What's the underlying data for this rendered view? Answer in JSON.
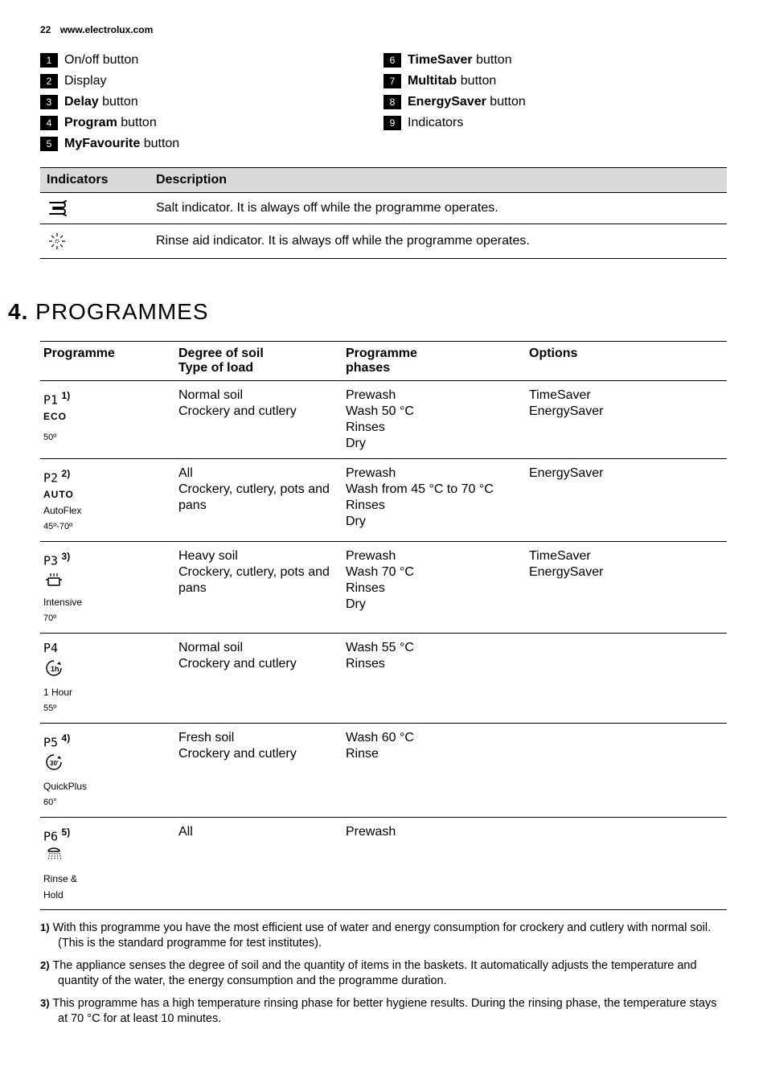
{
  "header": {
    "page_num": "22",
    "url": "www.electrolux.com"
  },
  "legend": {
    "left": [
      {
        "num": "1",
        "text_before": "On/off button",
        "bold": ""
      },
      {
        "num": "2",
        "text_before": "Display",
        "bold": ""
      },
      {
        "num": "3",
        "bold": "Delay",
        "text_after": " button"
      },
      {
        "num": "4",
        "bold": "Program",
        "text_after": " button"
      },
      {
        "num": "5",
        "bold": "MyFavourite",
        "text_after": " button"
      }
    ],
    "right": [
      {
        "num": "6",
        "bold": "TimeSaver",
        "text_after": " button"
      },
      {
        "num": "7",
        "bold": "Multitab",
        "text_after": " button"
      },
      {
        "num": "8",
        "bold": "EnergySaver",
        "text_after": " button"
      },
      {
        "num": "9",
        "text_before": "Indicators",
        "bold": ""
      }
    ]
  },
  "indicator_table": {
    "headers": {
      "c1": "Indicators",
      "c2": "Description"
    },
    "rows": [
      {
        "desc": "Salt indicator. It is always off while the programme operates."
      },
      {
        "desc": "Rinse aid indicator. It is always off while the programme operates."
      }
    ]
  },
  "section4": {
    "num": "4.",
    "title": "PROGRAMMES"
  },
  "prog_table": {
    "headers": {
      "c1": "Programme",
      "c2a": "Degree of soil",
      "c2b": "Type of load",
      "c3a": "Programme",
      "c3b": "phases",
      "c4": "Options"
    },
    "rows": [
      {
        "pcode": "P1",
        "sup": "1)",
        "label_bold": "ECO",
        "label": "",
        "temp": "50º",
        "soil": "Normal soil\nCrockery and cutlery",
        "phases": "Prewash\nWash 50 °C\nRinses\nDry",
        "options": "TimeSaver\nEnergySaver"
      },
      {
        "pcode": "P2",
        "sup": "2)",
        "label_bold": "AUTO",
        "label": "AutoFlex",
        "temp": "45º-70º",
        "soil": "All\nCrockery, cutlery, pots and pans",
        "phases": "Prewash\nWash from 45 °C to 70 °C\nRinses\nDry",
        "options": "EnergySaver"
      },
      {
        "pcode": "P3",
        "sup": "3)",
        "label_bold": "",
        "label": "Intensive",
        "temp": "70º",
        "soil": "Heavy soil\nCrockery, cutlery, pots and pans",
        "phases": "Prewash\nWash 70 °C\nRinses\nDry",
        "options": "TimeSaver\nEnergySaver"
      },
      {
        "pcode": "P4",
        "sup": "",
        "label_bold": "",
        "label": "1 Hour",
        "temp": "55º",
        "soil": "Normal soil\nCrockery and cutlery",
        "phases": "Wash 55 °C\nRinses",
        "options": ""
      },
      {
        "pcode": "P5",
        "sup": "4)",
        "label_bold": "",
        "label": "QuickPlus",
        "temp": "60°",
        "soil": "Fresh soil\nCrockery and cutlery",
        "phases": "Wash 60 °C\nRinse",
        "options": ""
      },
      {
        "pcode": "P6",
        "sup": "5)",
        "label_bold": "",
        "label": "Rinse &\nHold",
        "temp": "",
        "soil": "All",
        "phases": "Prewash",
        "options": ""
      }
    ]
  },
  "footnotes": [
    {
      "num": "1)",
      "text": "With this programme you have the most efficient use of water and energy consumption for crockery and cutlery with normal soil. (This is the standard programme for test institutes)."
    },
    {
      "num": "2)",
      "text": "The appliance senses the degree of soil and the quantity of items in the baskets. It automatically adjusts the temperature and quantity of the water, the energy consumption and the programme duration."
    },
    {
      "num": "3)",
      "text": "This programme has a high temperature rinsing phase for better hygiene results. During the rinsing phase, the temperature stays at 70 °C for at least 10 minutes."
    }
  ],
  "icons": {
    "p3": "pot",
    "p4": "clock-1h",
    "p5": "clock-30",
    "p6": "shower"
  }
}
